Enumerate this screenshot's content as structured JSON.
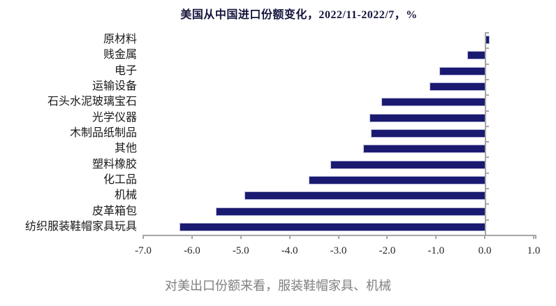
{
  "page": {
    "caption": "对美出口份额来看，服装鞋帽家具、机械"
  },
  "chart": {
    "title": "美国从中国进口份额变化，2022/11-2022/7，%",
    "bar_color": "#1a1a70",
    "bar_border_color": "#b4b4da",
    "axis_color": "#a6a6a6",
    "x_tick_labels": [
      "-7.0",
      "-6.0",
      "-5.0",
      "-4.0",
      "-3.0",
      "-2.0",
      "-1.0",
      "0.0",
      "1.0"
    ]
  },
  "chart_data": {
    "type": "bar",
    "orientation": "horizontal",
    "title": "美国从中国进口份额变化，2022/11-2022/7，%",
    "categories": [
      "原材料",
      "贱金属",
      "电子",
      "运输设备",
      "石头水泥玻璃宝石",
      "光学仪器",
      "木制品纸制品",
      "其他",
      "塑料橡胶",
      "化工品",
      "机械",
      "皮革箱包",
      "纺织服装鞋帽家具玩具"
    ],
    "values": [
      0.05,
      -0.36,
      -0.93,
      -1.13,
      -2.12,
      -2.36,
      -2.34,
      -2.49,
      -3.16,
      -3.61,
      -4.92,
      -5.51,
      -6.26
    ],
    "unit": "%",
    "xlim": [
      -7.0,
      1.0
    ],
    "x_tick_step": 1.0,
    "grid": false,
    "legend": "none"
  }
}
